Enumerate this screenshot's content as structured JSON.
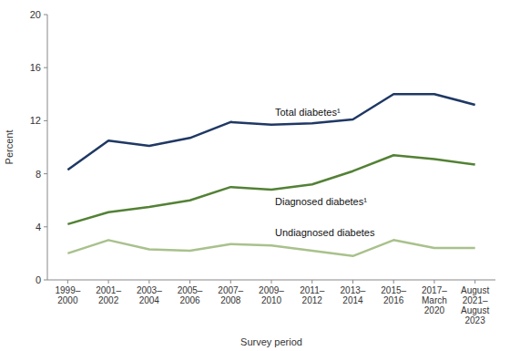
{
  "chart_data": {
    "type": "line",
    "xlabel": "Survey period",
    "ylabel": "Percent",
    "categories": [
      "1999–\n2000",
      "2001–\n2002",
      "2003–\n2004",
      "2005–\n2006",
      "2007–\n2008",
      "2009–\n2010",
      "2011–\n2012",
      "2013–\n2014",
      "2015–\n2016",
      "2017–\nMarch\n2020",
      "August\n2021–\nAugust\n2023"
    ],
    "series": [
      {
        "name": "Total diabetes¹",
        "color": "#1f3864",
        "values": [
          8.3,
          10.5,
          10.1,
          10.7,
          11.9,
          11.7,
          11.8,
          12.1,
          14.0,
          14.0,
          13.2
        ]
      },
      {
        "name": "Diagnosed diabetes¹",
        "color": "#538135",
        "values": [
          4.2,
          5.1,
          5.5,
          6.0,
          7.0,
          6.8,
          7.2,
          8.2,
          9.4,
          9.1,
          8.7
        ]
      },
      {
        "name": "Undiagnosed diabetes",
        "color": "#a9c18c",
        "values": [
          2.0,
          3.0,
          2.3,
          2.2,
          2.7,
          2.6,
          2.2,
          1.8,
          3.0,
          2.4,
          2.4
        ]
      }
    ],
    "ylim": [
      0,
      20
    ],
    "yticks": [
      0,
      4,
      8,
      12,
      16,
      20
    ],
    "grid": false
  }
}
